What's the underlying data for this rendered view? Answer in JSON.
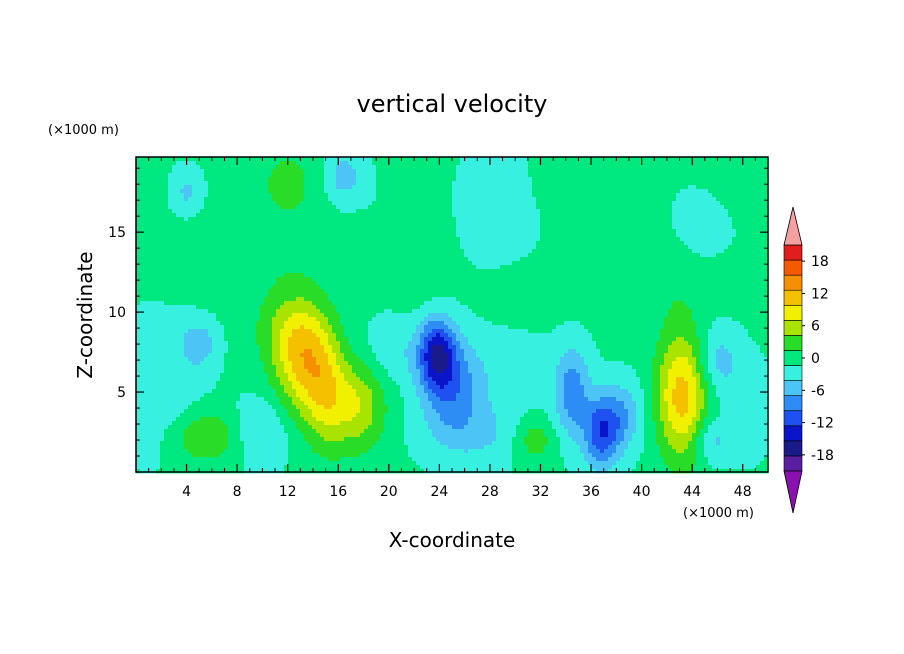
{
  "chart_data": {
    "type": "heatmap",
    "title": "vertical velocity",
    "xlabel": "X-coordinate",
    "ylabel": "Z-coordinate",
    "x_unit": "(×1000 m)",
    "y_unit": "(×1000 m)",
    "xlim": [
      0,
      50
    ],
    "ylim": [
      0,
      19.7
    ],
    "x_ticks": [
      4,
      8,
      12,
      16,
      20,
      24,
      28,
      32,
      36,
      40,
      44,
      48
    ],
    "x_tick_labels": [
      "4",
      "8",
      "12",
      "16",
      "20",
      "24",
      "28",
      "32",
      "36",
      "40",
      "44",
      "48"
    ],
    "y_ticks": [
      5,
      10,
      15
    ],
    "y_tick_labels": [
      "5",
      "10",
      "15"
    ],
    "colorbar": {
      "levels": [
        -21,
        -18,
        -15,
        -12,
        -9,
        -6,
        -3,
        0,
        3,
        6,
        9,
        12,
        15,
        18,
        21
      ],
      "tick_values": [
        -18,
        -12,
        -6,
        0,
        6,
        12,
        18
      ],
      "tick_labels": [
        "-18",
        "-12",
        "-6",
        "0",
        "6",
        "12",
        "18"
      ],
      "colors": [
        "#5a1fa0",
        "#1a1a8a",
        "#0a14c8",
        "#1f50f0",
        "#2e8cf5",
        "#4cc4f5",
        "#38f0e0",
        "#00e880",
        "#28dc28",
        "#a8e400",
        "#f0f000",
        "#f5c000",
        "#f59000",
        "#f55a00",
        "#e01e1e"
      ],
      "over_color": "#f5a0a0",
      "under_color": "#8a10b0"
    },
    "background_value": 0.5,
    "features": [
      {
        "x": 13.2,
        "z": 7.0,
        "sx": 1.6,
        "sz": 2.4,
        "v": 11
      },
      {
        "x": 15.0,
        "z": 5.0,
        "sx": 1.2,
        "sz": 2.5,
        "v": 7
      },
      {
        "x": 17.5,
        "z": 4.2,
        "sx": 1.6,
        "sz": 2.0,
        "v": 8
      },
      {
        "x": 12.0,
        "z": 9.0,
        "sx": 2.0,
        "sz": 1.8,
        "v": 4
      },
      {
        "x": 5.5,
        "z": 2.2,
        "sx": 1.8,
        "sz": 1.1,
        "v": 6
      },
      {
        "x": 43.2,
        "z": 4.8,
        "sx": 1.4,
        "sz": 2.8,
        "v": 13
      },
      {
        "x": 31.5,
        "z": 2.0,
        "sx": 1.2,
        "sz": 1.0,
        "v": 5
      },
      {
        "x": 23.8,
        "z": 7.5,
        "sx": 1.0,
        "sz": 1.6,
        "v": -13
      },
      {
        "x": 25.0,
        "z": 5.5,
        "sx": 1.6,
        "sz": 2.0,
        "v": -8
      },
      {
        "x": 36.8,
        "z": 2.4,
        "sx": 1.0,
        "sz": 1.6,
        "v": -11
      },
      {
        "x": 34.5,
        "z": 5.0,
        "sx": 1.0,
        "sz": 2.0,
        "v": -8
      },
      {
        "x": 38.5,
        "z": 3.5,
        "sx": 1.2,
        "sz": 1.5,
        "v": -6
      },
      {
        "x": 10.0,
        "z": 2.5,
        "sx": 1.5,
        "sz": 1.5,
        "v": -4
      },
      {
        "x": 5.0,
        "z": 8.0,
        "sx": 1.0,
        "sz": 1.0,
        "v": -5
      },
      {
        "x": 1.5,
        "z": 5.5,
        "sx": 2.5,
        "sz": 3.0,
        "v": -3
      },
      {
        "x": 27.0,
        "z": 2.5,
        "sx": 3.0,
        "sz": 1.5,
        "v": -4
      },
      {
        "x": 20.5,
        "z": 7.5,
        "sx": 2.0,
        "sz": 1.5,
        "v": -3
      },
      {
        "x": 46.0,
        "z": 7.0,
        "sx": 1.2,
        "sz": 1.5,
        "v": -5
      },
      {
        "x": 45.5,
        "z": 2.0,
        "sx": 1.0,
        "sz": 1.0,
        "v": -5
      },
      {
        "x": 48.5,
        "z": 4.0,
        "sx": 1.2,
        "sz": 2.0,
        "v": -3
      },
      {
        "x": 29.5,
        "z": 6.5,
        "sx": 2.5,
        "sz": 1.5,
        "v": -2
      },
      {
        "x": 16.5,
        "z": 18.5,
        "sx": 1.0,
        "sz": 1.0,
        "v": -5
      },
      {
        "x": 4.0,
        "z": 17.5,
        "sx": 0.8,
        "sz": 1.0,
        "v": -4
      },
      {
        "x": 45.0,
        "z": 15.5,
        "sx": 1.5,
        "sz": 1.5,
        "v": -3
      },
      {
        "x": 29.0,
        "z": 16.5,
        "sx": 6.0,
        "sz": 2.5,
        "v": -2
      },
      {
        "x": 12.0,
        "z": 18.0,
        "sx": 1.5,
        "sz": 1.5,
        "v": 4
      },
      {
        "x": 23.0,
        "z": 15.5,
        "sx": 1.5,
        "sz": 3.5,
        "v": 3
      },
      {
        "x": 33.5,
        "z": 18.0,
        "sx": 1.5,
        "sz": 1.5,
        "v": 3
      },
      {
        "x": 36.5,
        "z": 15.0,
        "sx": 3.0,
        "sz": 1.5,
        "v": 2
      },
      {
        "x": 8.0,
        "z": 13.5,
        "sx": 6.0,
        "sz": 1.5,
        "v": 2
      },
      {
        "x": 40.0,
        "z": 12.0,
        "sx": 5.0,
        "sz": 1.5,
        "v": 2
      },
      {
        "x": 48.0,
        "z": 18.0,
        "sx": 2.0,
        "sz": 1.5,
        "v": 2
      }
    ]
  }
}
